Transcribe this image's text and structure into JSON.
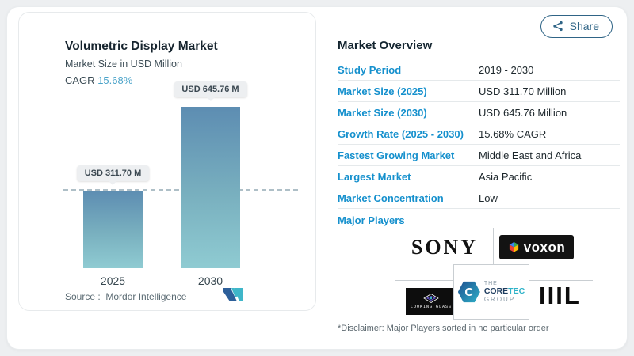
{
  "colors": {
    "accent_blue": "#1590cd",
    "cagr_value_blue": "#4aa3c9",
    "bar_gradient_top": "#5d8db2",
    "bar_gradient_bottom": "#8fcbd2",
    "share_button": "#2f6486"
  },
  "share": {
    "label": "Share"
  },
  "chart_panel": {
    "title": "Volumetric Display Market",
    "subtitle": "Market Size in USD Million",
    "cagr_label": "CAGR",
    "cagr_value": "15.68%",
    "source_label": "Source :",
    "source_value": "Mordor Intelligence"
  },
  "chart_data": {
    "type": "bar",
    "title": "Volumetric Display Market",
    "ylabel": "Market Size in USD Million",
    "categories": [
      "2025",
      "2030"
    ],
    "values": [
      311.7,
      645.76
    ],
    "value_labels": [
      "USD 311.70 M",
      "USD 645.76 M"
    ],
    "unit": "USD Million",
    "cagr": "15.68%",
    "guide_line_at": 311.7,
    "legend": "none",
    "gridlines": "off"
  },
  "overview": {
    "heading": "Market Overview",
    "rows": [
      {
        "label": "Study Period",
        "value": "2019 - 2030"
      },
      {
        "label": "Market Size (2025)",
        "value": "USD 311.70 Million"
      },
      {
        "label": "Market Size (2030)",
        "value": "USD 645.76 Million"
      },
      {
        "label": "Growth Rate (2025 - 2030)",
        "value": "15.68% CAGR"
      },
      {
        "label": "Fastest Growing Market",
        "value": "Middle East and Africa"
      },
      {
        "label": "Largest Market",
        "value": "Asia Pacific"
      },
      {
        "label": "Market Concentration",
        "value": "Low"
      }
    ],
    "major_players": {
      "label": "Major Players",
      "sony": "SONY",
      "voxon": "voxon",
      "looking_glass": "LOOKING GLASS",
      "coretec": {
        "the": "THE",
        "core": "CORE",
        "tec": "TEC",
        "group": "GROUP",
        "initial": "C"
      },
      "bars": "IIIL"
    },
    "disclaimer": "*Disclaimer: Major Players sorted in no particular order"
  }
}
